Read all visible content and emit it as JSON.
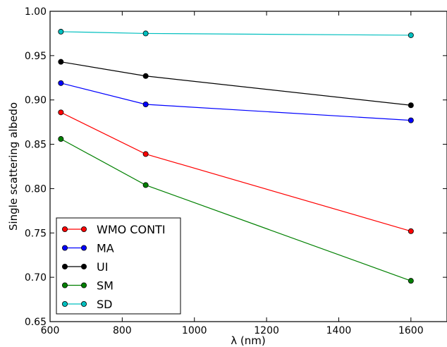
{
  "chart_data": {
    "type": "line",
    "x": [
      630,
      865,
      1600
    ],
    "xlabel": "λ (nm)",
    "ylabel": "Single scattering albedo",
    "xlim": [
      600,
      1700
    ],
    "ylim": [
      0.65,
      1.0
    ],
    "x_ticks": [
      "600",
      "800",
      "1000",
      "1200",
      "1400",
      "1600"
    ],
    "y_ticks": [
      "0.65",
      "0.70",
      "0.75",
      "0.80",
      "0.85",
      "0.90",
      "0.95",
      "1.00"
    ],
    "grid": false,
    "legend_position": "lower-left",
    "series": [
      {
        "name": "WMO CONTI",
        "color": "#ff0000",
        "values": [
          0.886,
          0.839,
          0.752
        ]
      },
      {
        "name": "MA",
        "color": "#0000ff",
        "values": [
          0.919,
          0.895,
          0.877
        ]
      },
      {
        "name": "UI",
        "color": "#000000",
        "values": [
          0.943,
          0.927,
          0.894
        ]
      },
      {
        "name": "SM",
        "color": "#008000",
        "values": [
          0.856,
          0.804,
          0.696
        ]
      },
      {
        "name": "SD",
        "color": "#00bfbf",
        "values": [
          0.977,
          0.975,
          0.973
        ]
      }
    ]
  }
}
